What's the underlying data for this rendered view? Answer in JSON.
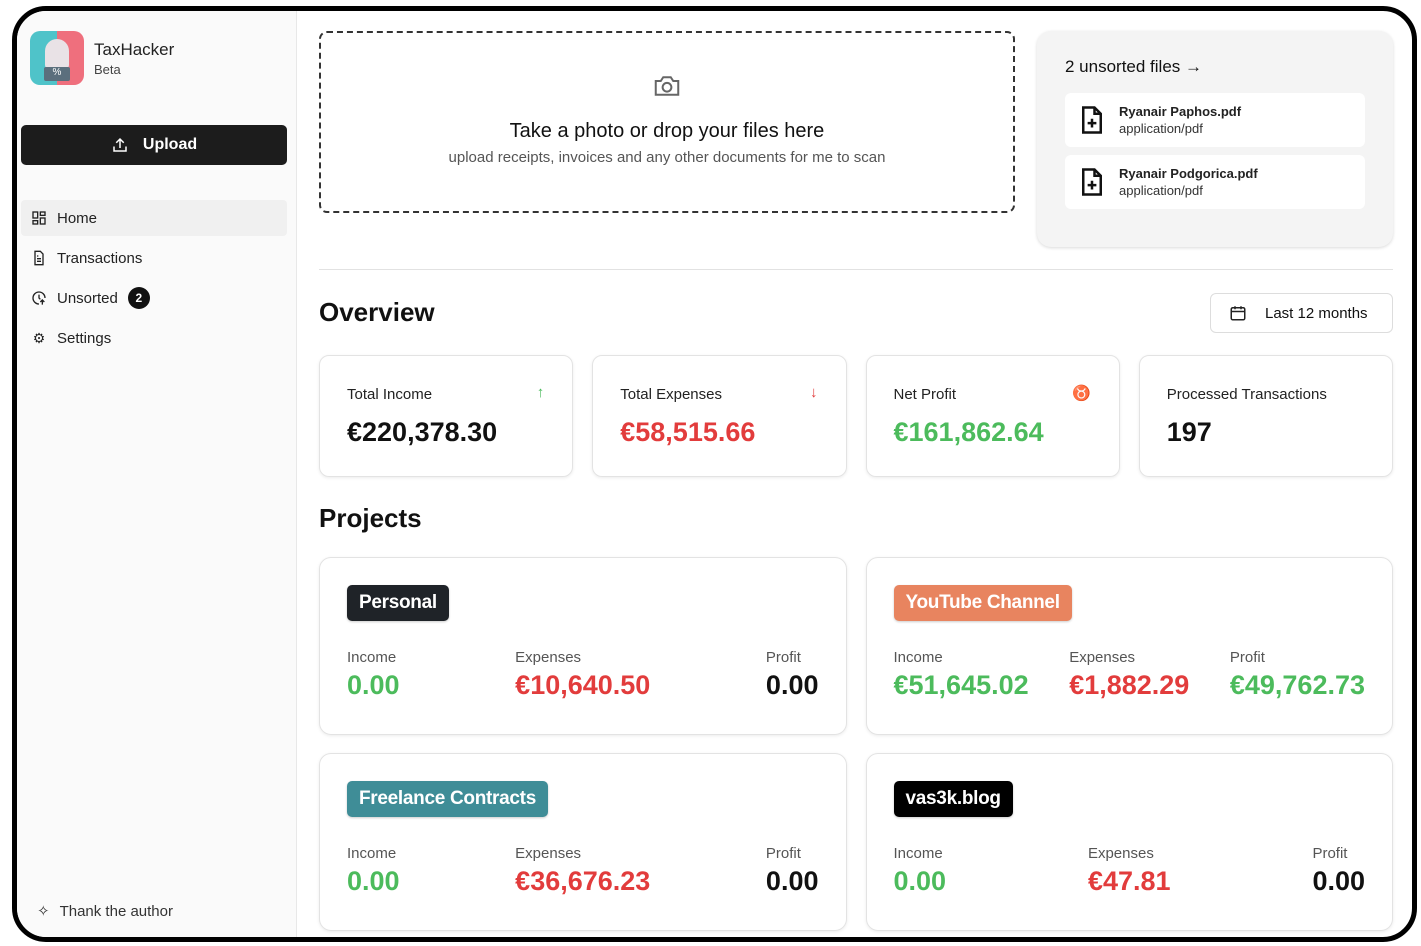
{
  "app": {
    "name": "TaxHacker",
    "subtitle": "Beta"
  },
  "sidebar": {
    "upload_label": "Upload",
    "items": [
      {
        "label": "Home",
        "icon": "grid-icon",
        "active": true
      },
      {
        "label": "Transactions",
        "icon": "file-text-icon"
      },
      {
        "label": "Unsorted",
        "icon": "clock-upload-icon",
        "badge": "2"
      },
      {
        "label": "Settings",
        "icon": "gear-icon"
      }
    ],
    "footer_label": "Thank the author"
  },
  "dropzone": {
    "title": "Take a photo or drop your files here",
    "subtitle": "upload receipts, invoices and any other documents for me to scan"
  },
  "unsorted": {
    "title": "2 unsorted files →",
    "files": [
      {
        "name": "Ryanair Paphos.pdf",
        "type": "application/pdf"
      },
      {
        "name": "Ryanair Podgorica.pdf",
        "type": "application/pdf"
      }
    ]
  },
  "overview": {
    "title": "Overview",
    "range_label": "Last 12 months",
    "stats": [
      {
        "label": "Total Income",
        "value": "€220,378.30",
        "icon": "arrow-up-icon"
      },
      {
        "label": "Total Expenses",
        "value": "€58,515.66",
        "icon": "arrow-down-icon"
      },
      {
        "label": "Net Profit",
        "value": "€161,862.64",
        "icon": "piggy-bank-icon"
      },
      {
        "label": "Processed Transactions",
        "value": "197"
      }
    ]
  },
  "projects": {
    "title": "Projects",
    "labels": {
      "income": "Income",
      "expenses": "Expenses",
      "profit": "Profit"
    },
    "items": [
      {
        "name": "Personal",
        "color": "#1f2328",
        "income": "0.00",
        "expenses": "€10,640.50",
        "profit": "0.00"
      },
      {
        "name": "YouTube Channel",
        "color": "#e8845f",
        "income": "€51,645.02",
        "expenses": "€1,882.29",
        "profit": "€49,762.73"
      },
      {
        "name": "Freelance Contracts",
        "color": "#3f8d97",
        "income": "0.00",
        "expenses": "€36,676.23",
        "profit": "0.00"
      },
      {
        "name": "vas3k.blog",
        "color": "#000000",
        "income": "0.00",
        "expenses": "€47.81",
        "profit": "0.00"
      }
    ]
  },
  "colors": {
    "income": "#4cbb5c",
    "expense": "#e23c3c"
  }
}
